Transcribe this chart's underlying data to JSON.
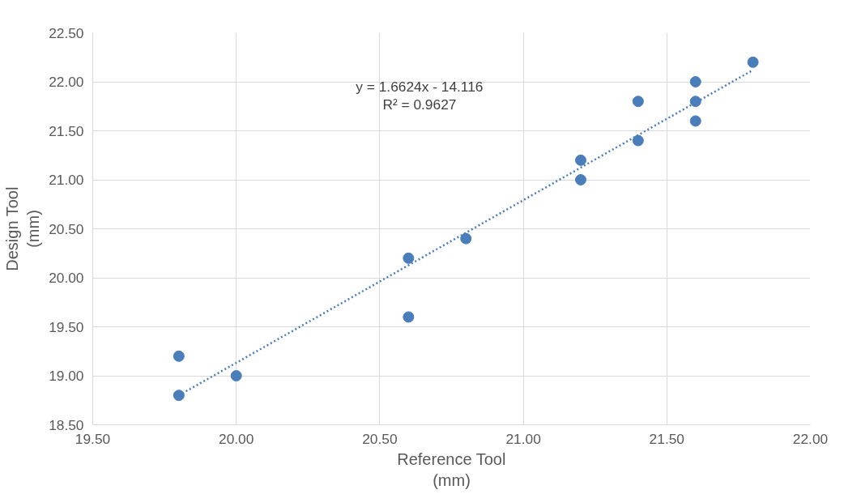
{
  "chart_data": {
    "type": "scatter",
    "xlabel": "Reference Tool\n(mm)",
    "ylabel": "Design Tool\n(mm)",
    "xlim": [
      19.5,
      22.0
    ],
    "xticks": [
      {
        "value": 19.5,
        "label": "19.50"
      },
      {
        "value": 20.0,
        "label": "20.00"
      },
      {
        "value": 20.5,
        "label": "20.50"
      },
      {
        "value": 21.0,
        "label": "21.00"
      },
      {
        "value": 21.5,
        "label": "21.50"
      },
      {
        "value": 22.0,
        "label": "22.00"
      }
    ],
    "ylim": [
      18.5,
      22.5
    ],
    "yticks": [
      {
        "value": 18.5,
        "label": "18.50"
      },
      {
        "value": 19.0,
        "label": "19.00"
      },
      {
        "value": 19.5,
        "label": "19.50"
      },
      {
        "value": 20.0,
        "label": "20.00"
      },
      {
        "value": 20.5,
        "label": "20.50"
      },
      {
        "value": 21.0,
        "label": "21.00"
      },
      {
        "value": 21.5,
        "label": "21.50"
      },
      {
        "value": 22.0,
        "label": "22.00"
      },
      {
        "value": 22.5,
        "label": "22.50"
      }
    ],
    "grid": true,
    "annotations": [
      "y = 1.6624x - 14.116",
      "R² = 0.9627"
    ],
    "series": [
      {
        "marker": "circle",
        "color": "#4a7ebb",
        "x": [
          19.8,
          19.8,
          20.0,
          20.6,
          20.6,
          20.8,
          21.2,
          21.2,
          21.4,
          21.4,
          21.6,
          21.6,
          21.6,
          21.8
        ],
        "values": [
          19.2,
          18.8,
          19.0,
          20.2,
          19.6,
          20.4,
          21.2,
          21.0,
          21.8,
          21.4,
          22.0,
          21.8,
          21.6,
          22.2
        ]
      },
      {
        "type": "line",
        "marker": "none",
        "color": "#4a7ebb",
        "line_style": "dotted",
        "x": [
          19.8,
          21.8
        ],
        "values": [
          18.8,
          22.12
        ]
      }
    ]
  }
}
